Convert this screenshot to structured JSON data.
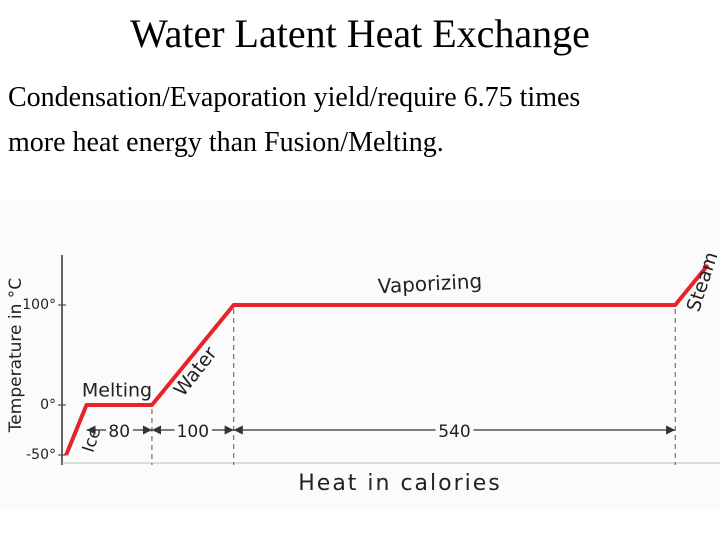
{
  "title": "Water Latent Heat Exchange",
  "subtitle_lines": [
    "Condensation/Evaporation yield/require 6.75 times",
    "more heat energy than Fusion/Melting."
  ],
  "chart_data": {
    "type": "line",
    "x_label": "Heat in calories",
    "y_label": "Temperature in °C",
    "x": [
      0,
      25,
      105,
      205,
      745,
      785
    ],
    "series": [
      {
        "color": "#e8232a",
        "values": [
          -50,
          0,
          0,
          100,
          100,
          140
        ]
      }
    ],
    "xlim": [
      -5,
      790
    ],
    "ylim": [
      -60,
      150
    ],
    "yticks": [
      {
        "value": -50,
        "label": "-50°"
      },
      {
        "value": 0,
        "label": "0°"
      },
      {
        "value": 100,
        "label": "100°"
      }
    ],
    "phase_labels": [
      "Ice",
      "Melting",
      "Water",
      "Vaporizing",
      "Steam"
    ],
    "heat_spans": [
      80,
      100,
      540
    ]
  }
}
